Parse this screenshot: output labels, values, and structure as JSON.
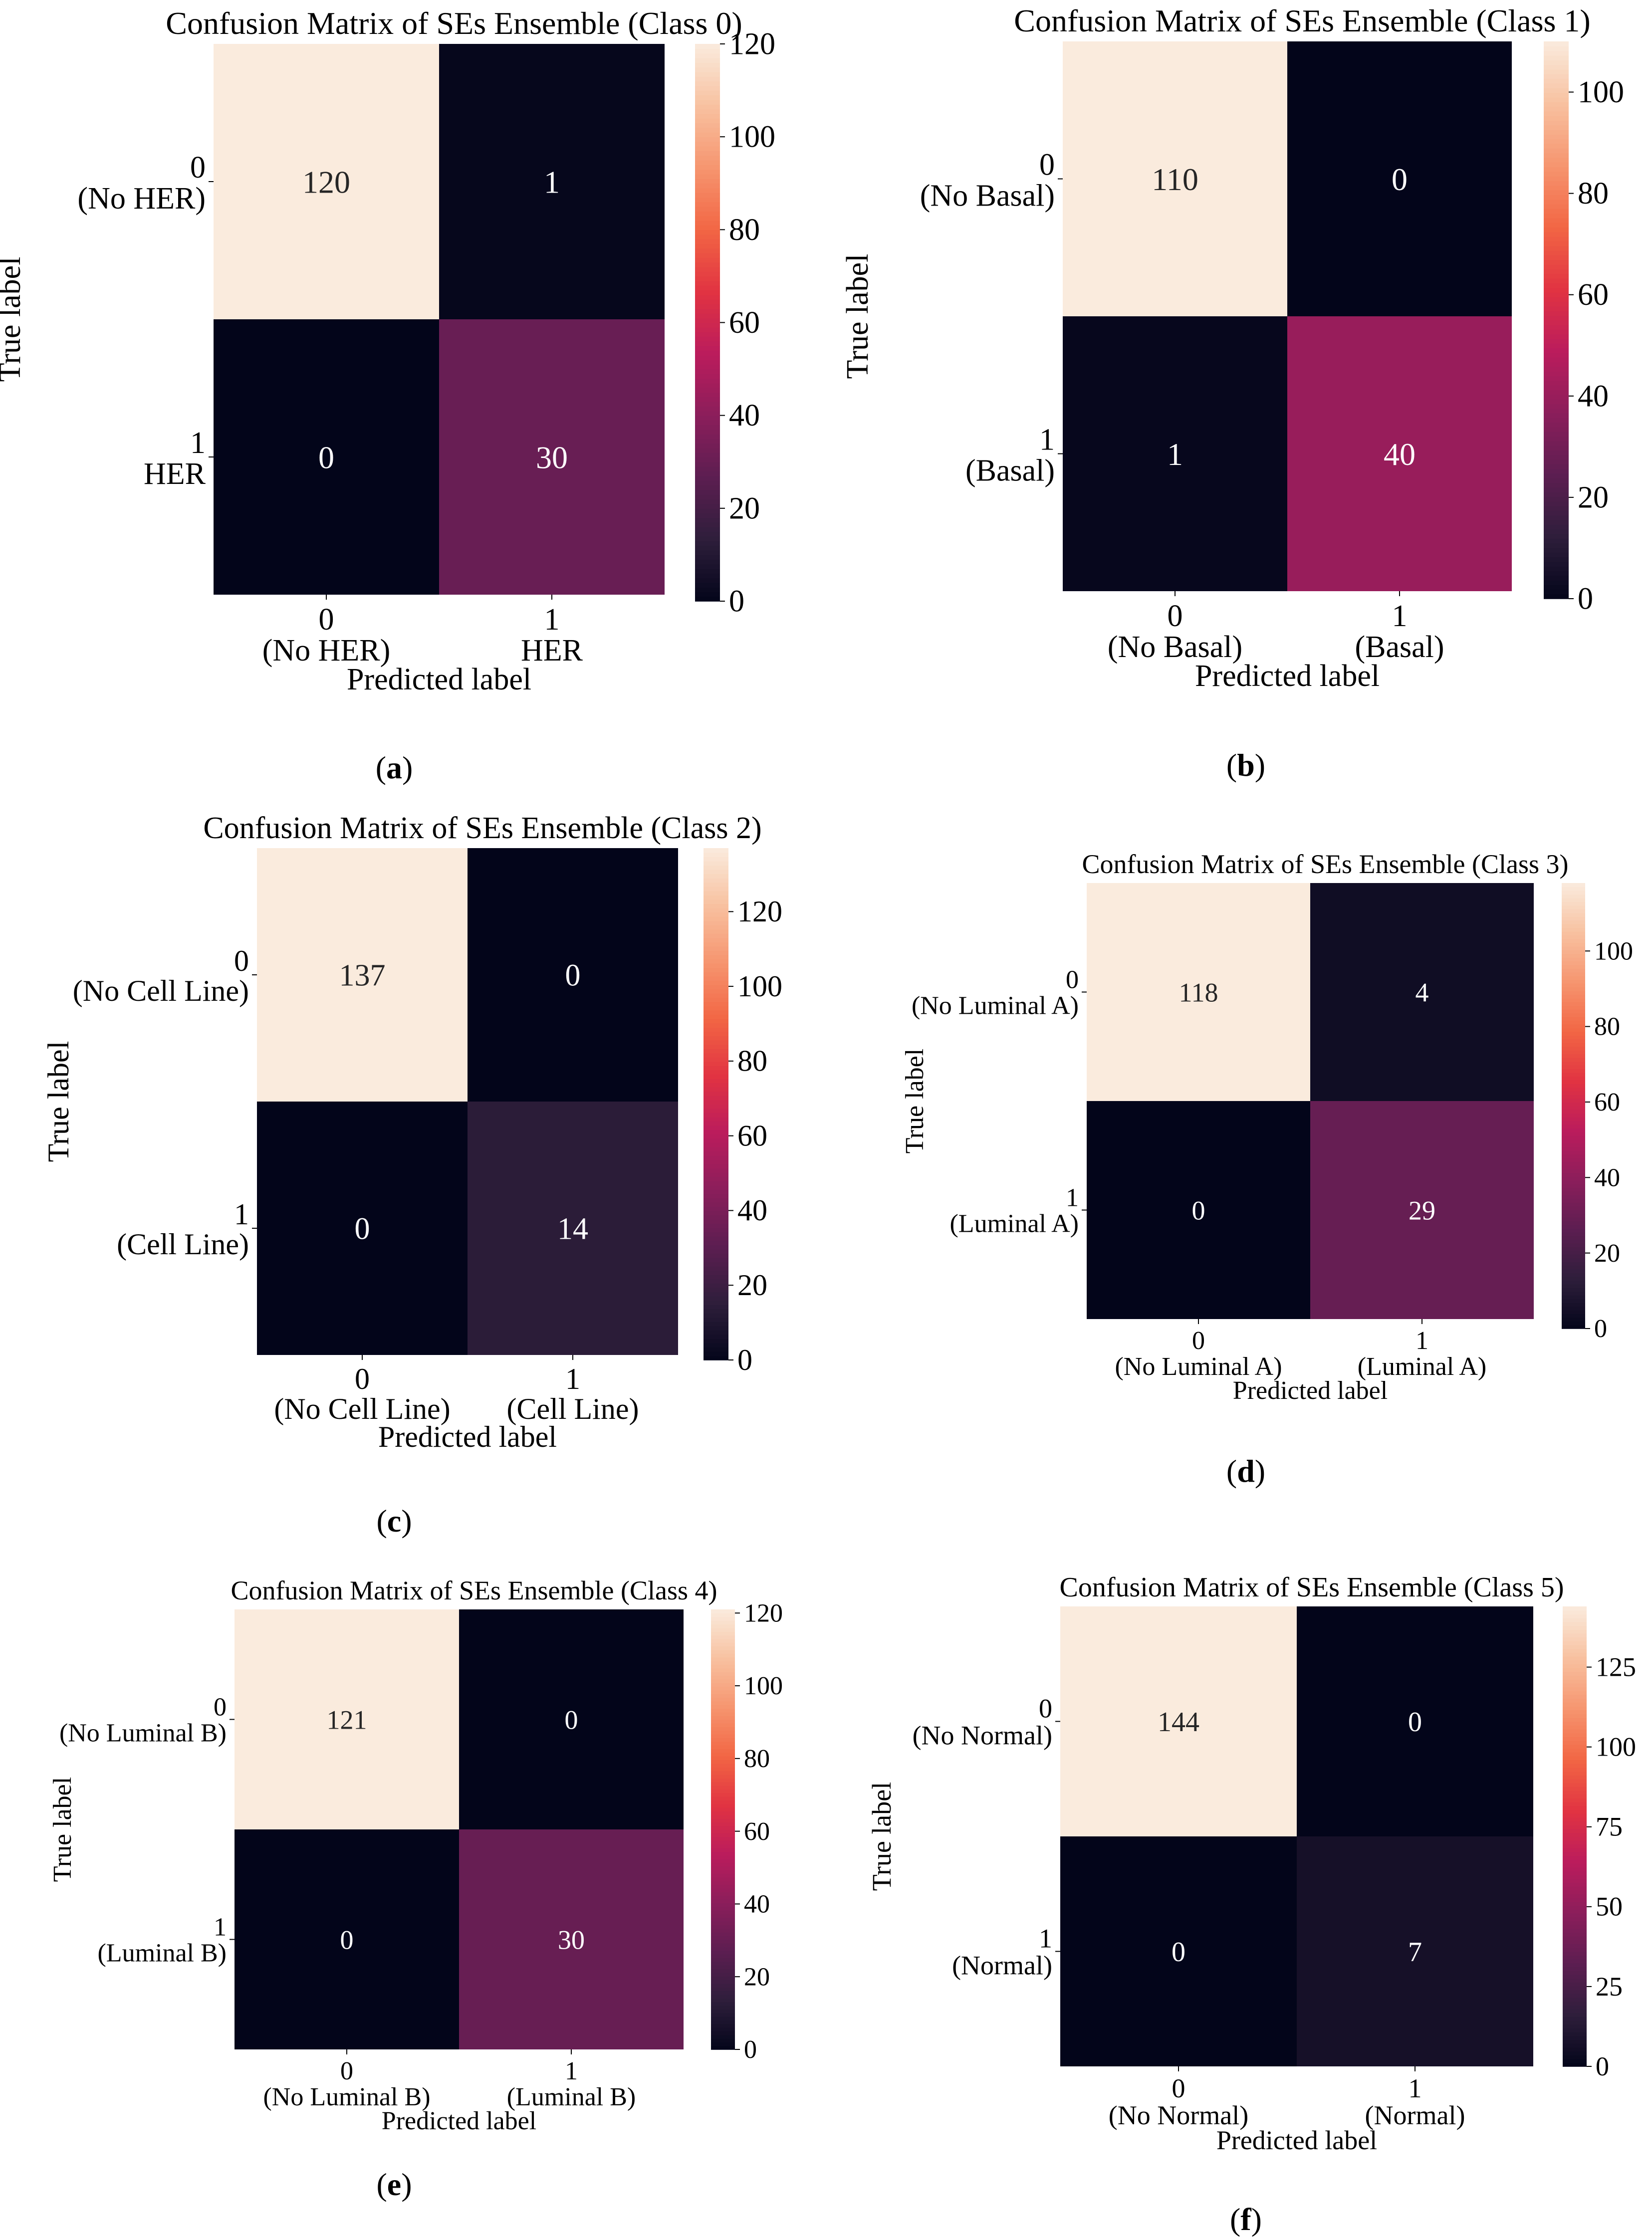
{
  "colormap": [
    "#03051a",
    "#2e1e3b",
    "#5c1e51",
    "#8b1e5b",
    "#bb1c5c",
    "#e13342",
    "#f26644",
    "#f6956f",
    "#f8c1a0",
    "#faebdd"
  ],
  "chart_data": [
    {
      "panel": "(a)",
      "type": "heatmap",
      "title": "Confusion Matrix of SEs Ensemble (Class 0)",
      "xlabel": "Predicted label",
      "ylabel": "True label",
      "x_ticks": [
        [
          "0",
          "(No HER)"
        ],
        [
          "1",
          "HER"
        ]
      ],
      "y_ticks": [
        [
          "0",
          "(No HER)"
        ],
        [
          "1",
          "HER"
        ]
      ],
      "values": [
        [
          120,
          1
        ],
        [
          0,
          30
        ]
      ],
      "colorbar_ticks": [
        0,
        20,
        40,
        60,
        80,
        100,
        120
      ],
      "vmin": 0,
      "vmax": 120
    },
    {
      "panel": "(b)",
      "type": "heatmap",
      "title": "Confusion Matrix of SEs Ensemble (Class 1)",
      "xlabel": "Predicted label",
      "ylabel": "True label",
      "x_ticks": [
        [
          "0",
          "(No Basal)"
        ],
        [
          "1",
          "(Basal)"
        ]
      ],
      "y_ticks": [
        [
          "0",
          "(No Basal)"
        ],
        [
          "1",
          "(Basal)"
        ]
      ],
      "values": [
        [
          110,
          0
        ],
        [
          1,
          40
        ]
      ],
      "colorbar_ticks": [
        0,
        20,
        40,
        60,
        80,
        100
      ],
      "vmin": 0,
      "vmax": 110
    },
    {
      "panel": "(c)",
      "type": "heatmap",
      "title": "Confusion Matrix of SEs Ensemble (Class 2)",
      "xlabel": "Predicted label",
      "ylabel": "True label",
      "x_ticks": [
        [
          "0",
          "(No Cell Line)"
        ],
        [
          "1",
          "(Cell Line)"
        ]
      ],
      "y_ticks": [
        [
          "0",
          "(No Cell Line)"
        ],
        [
          "1",
          "(Cell Line)"
        ]
      ],
      "values": [
        [
          137,
          0
        ],
        [
          0,
          14
        ]
      ],
      "colorbar_ticks": [
        0,
        20,
        40,
        60,
        80,
        100,
        120
      ],
      "vmin": 0,
      "vmax": 137
    },
    {
      "panel": "(d)",
      "type": "heatmap",
      "title": "Confusion Matrix of SEs Ensemble (Class 3)",
      "xlabel": "Predicted label",
      "ylabel": "True label",
      "x_ticks": [
        [
          "0",
          "(No Luminal A)"
        ],
        [
          "1",
          "(Luminal A)"
        ]
      ],
      "y_ticks": [
        [
          "0",
          "(No Luminal A)"
        ],
        [
          "1",
          "(Luminal A)"
        ]
      ],
      "values": [
        [
          118,
          4
        ],
        [
          0,
          29
        ]
      ],
      "colorbar_ticks": [
        0,
        20,
        40,
        60,
        80,
        100
      ],
      "vmin": 0,
      "vmax": 118
    },
    {
      "panel": "(e)",
      "type": "heatmap",
      "title": "Confusion Matrix of SEs Ensemble (Class 4)",
      "xlabel": "Predicted label",
      "ylabel": "True label",
      "x_ticks": [
        [
          "0",
          "(No Luminal B)"
        ],
        [
          "1",
          "(Luminal B)"
        ]
      ],
      "y_ticks": [
        [
          "0",
          "(No Luminal B)"
        ],
        [
          "1",
          "(Luminal B)"
        ]
      ],
      "values": [
        [
          121,
          0
        ],
        [
          0,
          30
        ]
      ],
      "colorbar_ticks": [
        0,
        20,
        40,
        60,
        80,
        100,
        120
      ],
      "vmin": 0,
      "vmax": 121
    },
    {
      "panel": "(f)",
      "type": "heatmap",
      "title": "Confusion Matrix of SEs Ensemble (Class 5)",
      "xlabel": "Predicted label",
      "ylabel": "True label",
      "x_ticks": [
        [
          "0",
          "(No Normal)"
        ],
        [
          "1",
          "(Normal)"
        ]
      ],
      "y_ticks": [
        [
          "0",
          "(No Normal)"
        ],
        [
          "1",
          "(Normal)"
        ]
      ],
      "values": [
        [
          144,
          0
        ],
        [
          0,
          7
        ]
      ],
      "colorbar_ticks": [
        0,
        25,
        50,
        75,
        100,
        125
      ],
      "vmin": 0,
      "vmax": 144
    }
  ]
}
